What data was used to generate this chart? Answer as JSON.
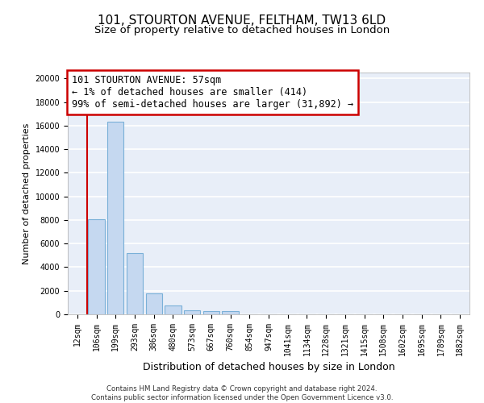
{
  "title1": "101, STOURTON AVENUE, FELTHAM, TW13 6LD",
  "title2": "Size of property relative to detached houses in London",
  "xlabel": "Distribution of detached houses by size in London",
  "ylabel": "Number of detached properties",
  "categories": [
    "12sqm",
    "106sqm",
    "199sqm",
    "293sqm",
    "386sqm",
    "480sqm",
    "573sqm",
    "667sqm",
    "760sqm",
    "854sqm",
    "947sqm",
    "1041sqm",
    "1134sqm",
    "1228sqm",
    "1321sqm",
    "1415sqm",
    "1508sqm",
    "1602sqm",
    "1695sqm",
    "1789sqm",
    "1882sqm"
  ],
  "values": [
    0,
    8050,
    16350,
    5200,
    1800,
    780,
    320,
    280,
    270,
    0,
    0,
    0,
    0,
    0,
    0,
    0,
    0,
    0,
    0,
    0,
    0
  ],
  "bar_color": "#c5d8f0",
  "bar_edge_color": "#7ab0d8",
  "annotation_box_text": "101 STOURTON AVENUE: 57sqm\n← 1% of detached houses are smaller (414)\n99% of semi-detached houses are larger (31,892) →",
  "annotation_box_color": "white",
  "annotation_box_edge_color": "#cc0000",
  "vline_color": "#cc0000",
  "ylim": [
    0,
    20500
  ],
  "yticks": [
    0,
    2000,
    4000,
    6000,
    8000,
    10000,
    12000,
    14000,
    16000,
    18000,
    20000
  ],
  "footer_text": "Contains HM Land Registry data © Crown copyright and database right 2024.\nContains public sector information licensed under the Open Government Licence v3.0.",
  "bg_color": "#e8eef8",
  "grid_color": "white",
  "title1_fontsize": 11,
  "title2_fontsize": 9.5,
  "ann_fontsize": 8.5,
  "tick_fontsize": 7,
  "ylabel_fontsize": 8,
  "xlabel_fontsize": 9
}
